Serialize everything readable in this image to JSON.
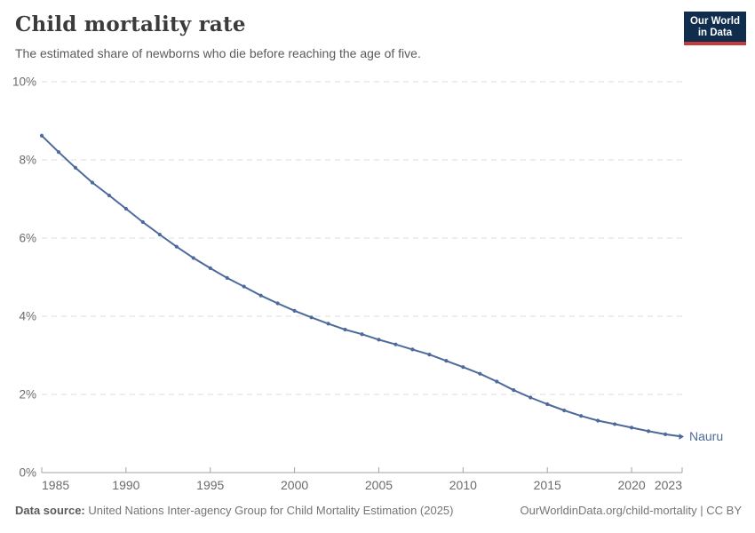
{
  "header": {
    "title": "Child mortality rate",
    "subtitle": "The estimated share of newborns who die before reaching the age of five.",
    "logo": {
      "line1": "Our World",
      "line2": "in Data"
    }
  },
  "chart_data": {
    "type": "line",
    "title": "Child mortality rate",
    "subtitle": "The estimated share of newborns who die before reaching the age of five.",
    "xlabel": "",
    "ylabel": "",
    "xlim": [
      1985,
      2023
    ],
    "ylim": [
      0,
      10
    ],
    "x_ticks": [
      1985,
      1990,
      1995,
      2000,
      2005,
      2010,
      2015,
      2020,
      2023
    ],
    "y_ticks": [
      0,
      2,
      4,
      6,
      8,
      10
    ],
    "y_tick_suffix": "%",
    "grid": "horizontal-dashed",
    "legend_position": "end-of-line-label",
    "series": [
      {
        "name": "Nauru",
        "x": [
          1985,
          1986,
          1987,
          1988,
          1989,
          1990,
          1991,
          1992,
          1993,
          1994,
          1995,
          1996,
          1997,
          1998,
          1999,
          2000,
          2001,
          2002,
          2003,
          2004,
          2005,
          2006,
          2007,
          2008,
          2009,
          2010,
          2011,
          2012,
          2013,
          2014,
          2015,
          2016,
          2017,
          2018,
          2019,
          2020,
          2021,
          2022,
          2023
        ],
        "values": [
          8.62,
          8.2,
          7.8,
          7.42,
          7.09,
          6.75,
          6.41,
          6.09,
          5.78,
          5.49,
          5.23,
          4.98,
          4.76,
          4.53,
          4.33,
          4.14,
          3.97,
          3.81,
          3.66,
          3.54,
          3.4,
          3.28,
          3.15,
          3.02,
          2.86,
          2.7,
          2.53,
          2.33,
          2.11,
          1.92,
          1.75,
          1.59,
          1.45,
          1.33,
          1.24,
          1.15,
          1.06,
          0.98,
          0.92
        ]
      }
    ]
  },
  "footer": {
    "source_label": "Data source:",
    "source_text": " United Nations Inter-agency Group for Child Mortality Estimation (2025)",
    "link_text": "OurWorldinData.org/child-mortality | CC BY"
  },
  "colors": {
    "series_blue": "#4c6a9c",
    "grid": "#dcdcdc",
    "axis": "#a3a3a3",
    "tick_label": "#6b6b6b",
    "title": "#3b3b3b",
    "subtitle": "#5a5a5a",
    "footer_text": "#757575",
    "logo_bg": "#102d4e",
    "logo_accent": "#c43b3b"
  }
}
